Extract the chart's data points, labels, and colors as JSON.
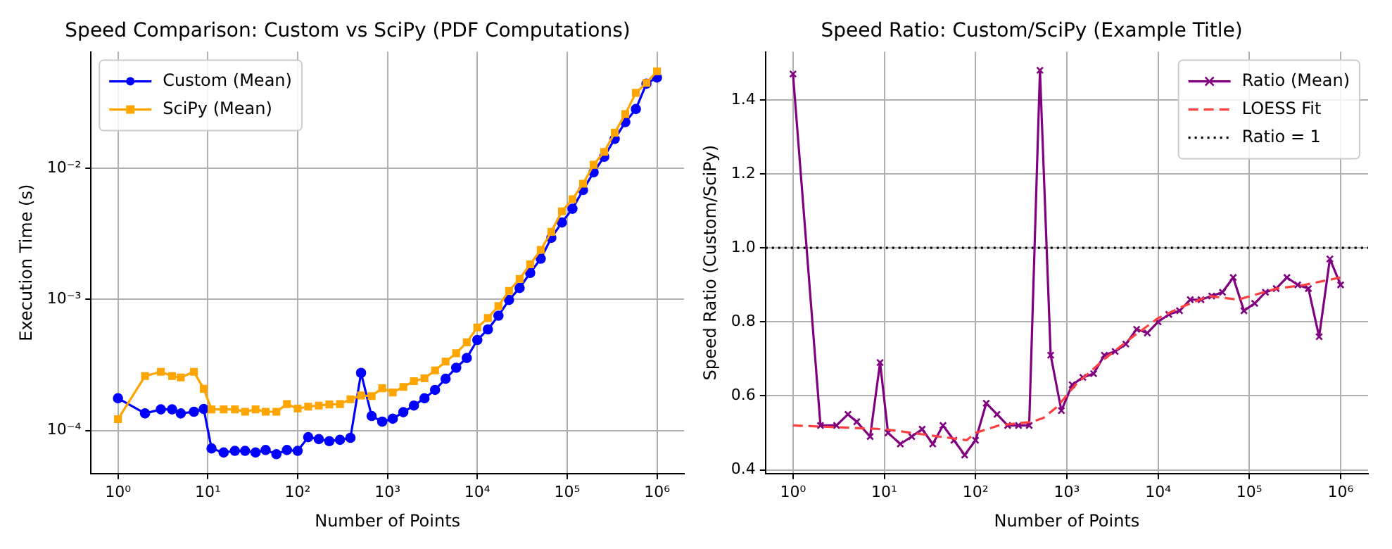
{
  "chart_data": [
    {
      "type": "line",
      "title": "Speed Comparison: Custom vs SciPy (PDF Computations)",
      "xlabel": "Number of Points",
      "ylabel": "Execution Time (s)",
      "x": [
        1,
        2,
        3,
        4,
        5,
        7,
        9,
        11,
        15,
        20,
        26,
        34,
        44,
        58,
        76,
        100,
        131,
        172,
        225,
        296,
        387,
        508,
        666,
        873,
        1145,
        1501,
        1968,
        2581,
        3384,
        4437,
        5818,
        7629,
        10000,
        13111,
        17191,
        22540,
        29554,
        38750,
        50808,
        66618,
        87348,
        114530,
        150167,
        196894,
        258162,
        338495,
        443827,
        581936,
        763019,
        1000000
      ],
      "series": [
        {
          "name": "Custom (Mean)",
          "color": "#0000ff",
          "marker": "circle",
          "values": [
            0.000176,
            0.000135,
            0.000145,
            0.000145,
            0.000135,
            0.000139,
            0.000146,
            7.3e-05,
            6.8e-05,
            7e-05,
            7e-05,
            6.8e-05,
            7.1e-05,
            6.6e-05,
            7.1e-05,
            7e-05,
            8.9e-05,
            8.6e-05,
            8.3e-05,
            8.5e-05,
            8.8e-05,
            0.000275,
            0.000129,
            0.000117,
            0.000123,
            0.000138,
            0.000155,
            0.000176,
            0.000204,
            0.000248,
            0.000301,
            0.000357,
            0.00049,
            0.00059,
            0.00075,
            0.00099,
            0.00122,
            0.00159,
            0.00204,
            0.00294,
            0.00385,
            0.0049,
            0.0068,
            0.0093,
            0.0122,
            0.0167,
            0.0224,
            0.0282,
            0.044,
            0.049
          ]
        },
        {
          "name": "SciPy (Mean)",
          "color": "#ffa500",
          "marker": "square",
          "values": [
            0.000122,
            0.00026,
            0.00028,
            0.00026,
            0.000254,
            0.00028,
            0.000208,
            0.000145,
            0.000145,
            0.000145,
            0.000139,
            0.000145,
            0.000139,
            0.000139,
            0.000159,
            0.000147,
            0.000152,
            0.000155,
            0.000158,
            0.000159,
            0.000173,
            0.000185,
            0.000183,
            0.00021,
            0.000195,
            0.000215,
            0.000238,
            0.00025,
            0.000287,
            0.000335,
            0.000388,
            0.00047,
            0.00061,
            0.00072,
            0.00089,
            0.00116,
            0.00143,
            0.00185,
            0.00238,
            0.00327,
            0.00468,
            0.0058,
            0.0076,
            0.0106,
            0.0133,
            0.0186,
            0.0258,
            0.0375,
            0.0446,
            0.0547
          ]
        }
      ],
      "xlim": [
        0.5,
        2000000
      ],
      "ylim": [
        4.7e-05,
        0.077
      ],
      "xticks": [
        {
          "value": 1,
          "label": "10⁰"
        },
        {
          "value": 10,
          "label": "10¹"
        },
        {
          "value": 100,
          "label": "10²"
        },
        {
          "value": 1000,
          "label": "10³"
        },
        {
          "value": 10000,
          "label": "10⁴"
        },
        {
          "value": 100000,
          "label": "10⁵"
        },
        {
          "value": 1000000,
          "label": "10⁶"
        }
      ],
      "yticks": [
        {
          "value": 0.0001,
          "label": "10⁻⁴"
        },
        {
          "value": 0.001,
          "label": "10⁻³"
        },
        {
          "value": 0.01,
          "label": "10⁻²"
        }
      ],
      "log": "xy",
      "grid": true,
      "legend": "top left"
    },
    {
      "type": "line",
      "title": "Speed Ratio: Custom/SciPy (Example Title)",
      "xlabel": "Number of Points",
      "ylabel": "Speed Ratio (Custom/SciPy)",
      "x": [
        1,
        2,
        3,
        4,
        5,
        7,
        9,
        11,
        15,
        20,
        26,
        34,
        44,
        58,
        76,
        100,
        131,
        172,
        225,
        296,
        387,
        508,
        666,
        873,
        1145,
        1501,
        1968,
        2581,
        3384,
        4437,
        5818,
        7629,
        10000,
        13111,
        17191,
        22540,
        29554,
        38750,
        50808,
        66618,
        87348,
        114530,
        150167,
        196894,
        258162,
        338495,
        443827,
        581936,
        763019,
        1000000
      ],
      "series": [
        {
          "name": "Ratio (Mean)",
          "color": "#800080",
          "marker": "cross",
          "values": [
            1.47,
            0.52,
            0.52,
            0.55,
            0.53,
            0.49,
            0.69,
            0.5,
            0.47,
            0.49,
            0.51,
            0.47,
            0.52,
            0.48,
            0.44,
            0.48,
            0.58,
            0.55,
            0.52,
            0.52,
            0.52,
            1.48,
            0.71,
            0.56,
            0.63,
            0.65,
            0.66,
            0.71,
            0.72,
            0.74,
            0.78,
            0.77,
            0.8,
            0.82,
            0.83,
            0.86,
            0.86,
            0.87,
            0.88,
            0.92,
            0.83,
            0.85,
            0.88,
            0.89,
            0.92,
            0.9,
            0.89,
            0.76,
            0.97,
            0.9
          ]
        },
        {
          "name": "LOESS Fit",
          "color": "#ff4040",
          "marker": "none",
          "line_style": "dashed",
          "x": [
            1,
            10,
            20,
            40,
            80,
            100,
            180,
            420,
            550,
            780,
            1250,
            2600,
            5300,
            10000,
            18000,
            36000,
            75000,
            200000,
            400000,
            1000000
          ],
          "values": [
            0.52,
            0.51,
            0.5,
            0.49,
            0.48,
            0.5,
            0.52,
            0.53,
            0.54,
            0.57,
            0.63,
            0.7,
            0.76,
            0.81,
            0.84,
            0.87,
            0.86,
            0.89,
            0.9,
            0.92
          ]
        }
      ],
      "ref_lines": [
        {
          "axis": "y",
          "value": 1,
          "label": "Ratio = 1",
          "color": "#000000",
          "line_style": "dotted"
        }
      ],
      "xlim": [
        0.5,
        2000000
      ],
      "ylim": [
        0.39,
        1.53
      ],
      "xticks": [
        {
          "value": 1,
          "label": "10⁰"
        },
        {
          "value": 10,
          "label": "10¹"
        },
        {
          "value": 100,
          "label": "10²"
        },
        {
          "value": 1000,
          "label": "10³"
        },
        {
          "value": 10000,
          "label": "10⁴"
        },
        {
          "value": 100000,
          "label": "10⁵"
        },
        {
          "value": 1000000,
          "label": "10⁶"
        }
      ],
      "yticks": [
        0.4,
        0.6,
        0.8,
        {
          "value": 1,
          "label": "1.0"
        },
        1.2,
        1.4
      ],
      "log": "x",
      "grid": true,
      "legend": "top right"
    }
  ]
}
